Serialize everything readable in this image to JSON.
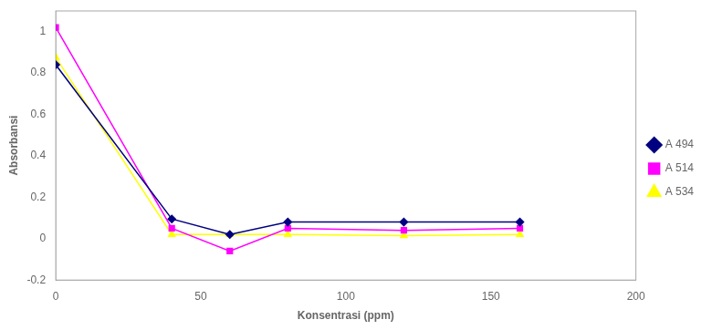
{
  "chart_data": {
    "type": "line",
    "x_label": "Konsentrasi (ppm)",
    "y_label": "Absorbansi",
    "x": [
      0,
      40,
      60,
      80,
      120,
      160
    ],
    "series": [
      {
        "name": "A 494",
        "color": "#000080",
        "marker": "diamond",
        "values": [
          0.84,
          0.095,
          0.02,
          0.08,
          0.08,
          0.08
        ]
      },
      {
        "name": "A 514",
        "color": "#FF00FF",
        "marker": "square",
        "values": [
          1.02,
          0.05,
          -0.06,
          0.05,
          0.04,
          0.05
        ]
      },
      {
        "name": "A 534",
        "color": "#FFFF00",
        "marker": "triangle",
        "values": [
          0.875,
          0.02,
          0.02,
          0.02,
          0.015,
          0.02
        ]
      }
    ],
    "xlim": [
      0,
      200
    ],
    "xticks": [
      0,
      50,
      100,
      150,
      200
    ],
    "ylim": [
      -0.2,
      1.1
    ],
    "yticks": [
      -0.2,
      0,
      0.2,
      0.4,
      0.6,
      0.8,
      1
    ],
    "grid": false,
    "legend": "right"
  }
}
